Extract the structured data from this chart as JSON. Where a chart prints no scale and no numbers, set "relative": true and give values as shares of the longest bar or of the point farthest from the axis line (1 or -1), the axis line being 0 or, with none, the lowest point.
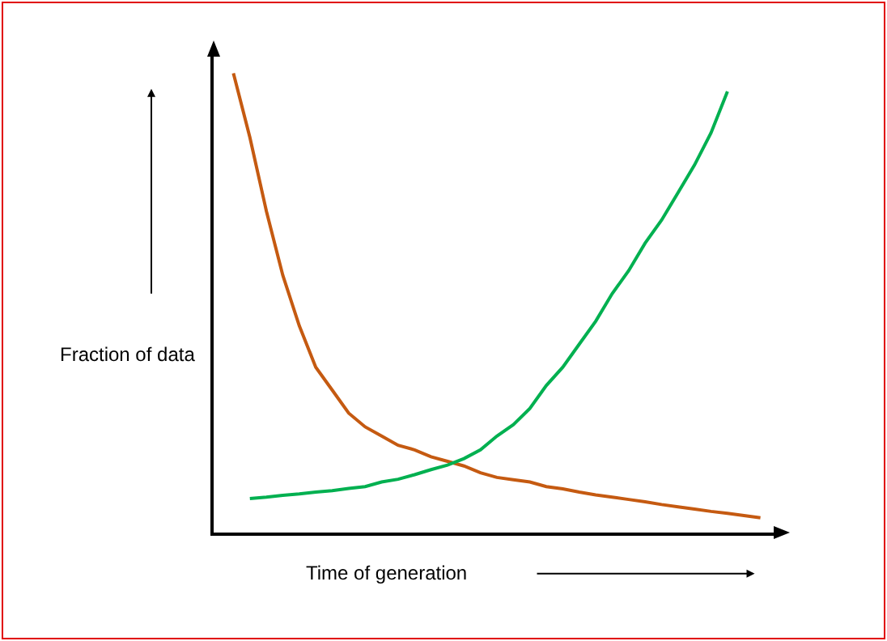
{
  "chart_data": {
    "type": "line",
    "relative": true,
    "xlabel": "Time of generation",
    "ylabel": "Fraction of data",
    "categories": [
      null,
      null,
      null,
      null,
      null,
      null,
      null,
      null,
      null,
      null,
      null,
      null,
      null,
      null,
      null,
      null,
      null,
      null,
      null,
      null,
      null,
      null,
      null,
      null,
      null,
      null,
      null,
      null,
      null,
      null,
      null,
      null,
      null
    ],
    "series": [
      {
        "color": "#c55a11",
        "values": [
          1.0,
          0.86,
          0.7,
          0.56,
          0.45,
          0.36,
          0.31,
          0.26,
          0.23,
          0.21,
          0.19,
          0.18,
          0.165,
          0.155,
          0.145,
          0.13,
          0.12,
          0.115,
          0.11,
          0.1,
          0.095,
          0.088,
          0.082,
          0.077,
          0.072,
          0.067,
          0.061,
          0.056,
          0.051,
          0.046,
          0.042,
          0.037,
          0.032
        ]
      },
      {
        "color": "#00b050",
        "values": [
          null,
          0.074,
          0.077,
          0.081,
          0.084,
          0.088,
          0.091,
          0.096,
          0.1,
          0.11,
          0.116,
          0.126,
          0.137,
          0.147,
          0.161,
          0.18,
          0.21,
          0.235,
          0.27,
          0.32,
          0.36,
          0.41,
          0.46,
          0.52,
          0.57,
          0.63,
          0.68,
          0.74,
          0.8,
          0.87,
          0.96,
          null,
          null
        ]
      }
    ],
    "marker": "none",
    "line_style": "solid"
  }
}
